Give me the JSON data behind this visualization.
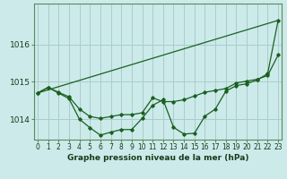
{
  "title": "Graphe pression niveau de la mer (hPa)",
  "background_color": "#cceaea",
  "grid_color": "#aacccc",
  "line_color": "#1a6020",
  "hours": [
    0,
    1,
    2,
    3,
    4,
    5,
    6,
    7,
    8,
    9,
    10,
    11,
    12,
    13,
    14,
    15,
    16,
    17,
    18,
    19,
    20,
    21,
    22,
    23
  ],
  "line1": [
    1014.7,
    1014.85,
    1014.7,
    1014.55,
    1014.0,
    1013.77,
    1013.57,
    1013.65,
    1013.72,
    1013.72,
    1014.02,
    1014.37,
    1014.52,
    1013.78,
    1013.6,
    1013.62,
    1014.08,
    1014.27,
    1014.75,
    1014.9,
    1014.95,
    1015.05,
    1015.22,
    1016.65
  ],
  "line2": [
    1014.7,
    1014.85,
    1014.72,
    1014.6,
    1014.27,
    1014.07,
    1014.02,
    1014.07,
    1014.12,
    1014.12,
    1014.17,
    1014.57,
    1014.47,
    1014.47,
    1014.52,
    1014.62,
    1014.72,
    1014.77,
    1014.82,
    1014.97,
    1015.02,
    1015.07,
    1015.17,
    1015.72
  ],
  "line3_x": [
    0,
    23
  ],
  "line3_y": [
    1014.7,
    1016.65
  ],
  "ylim": [
    1013.45,
    1017.1
  ],
  "yticks": [
    1014.0,
    1015.0,
    1016.0
  ],
  "xlim": [
    -0.3,
    23.3
  ],
  "title_fontsize": 6.5,
  "tick_fontsize": 5.5,
  "ytick_fontsize": 6.5
}
